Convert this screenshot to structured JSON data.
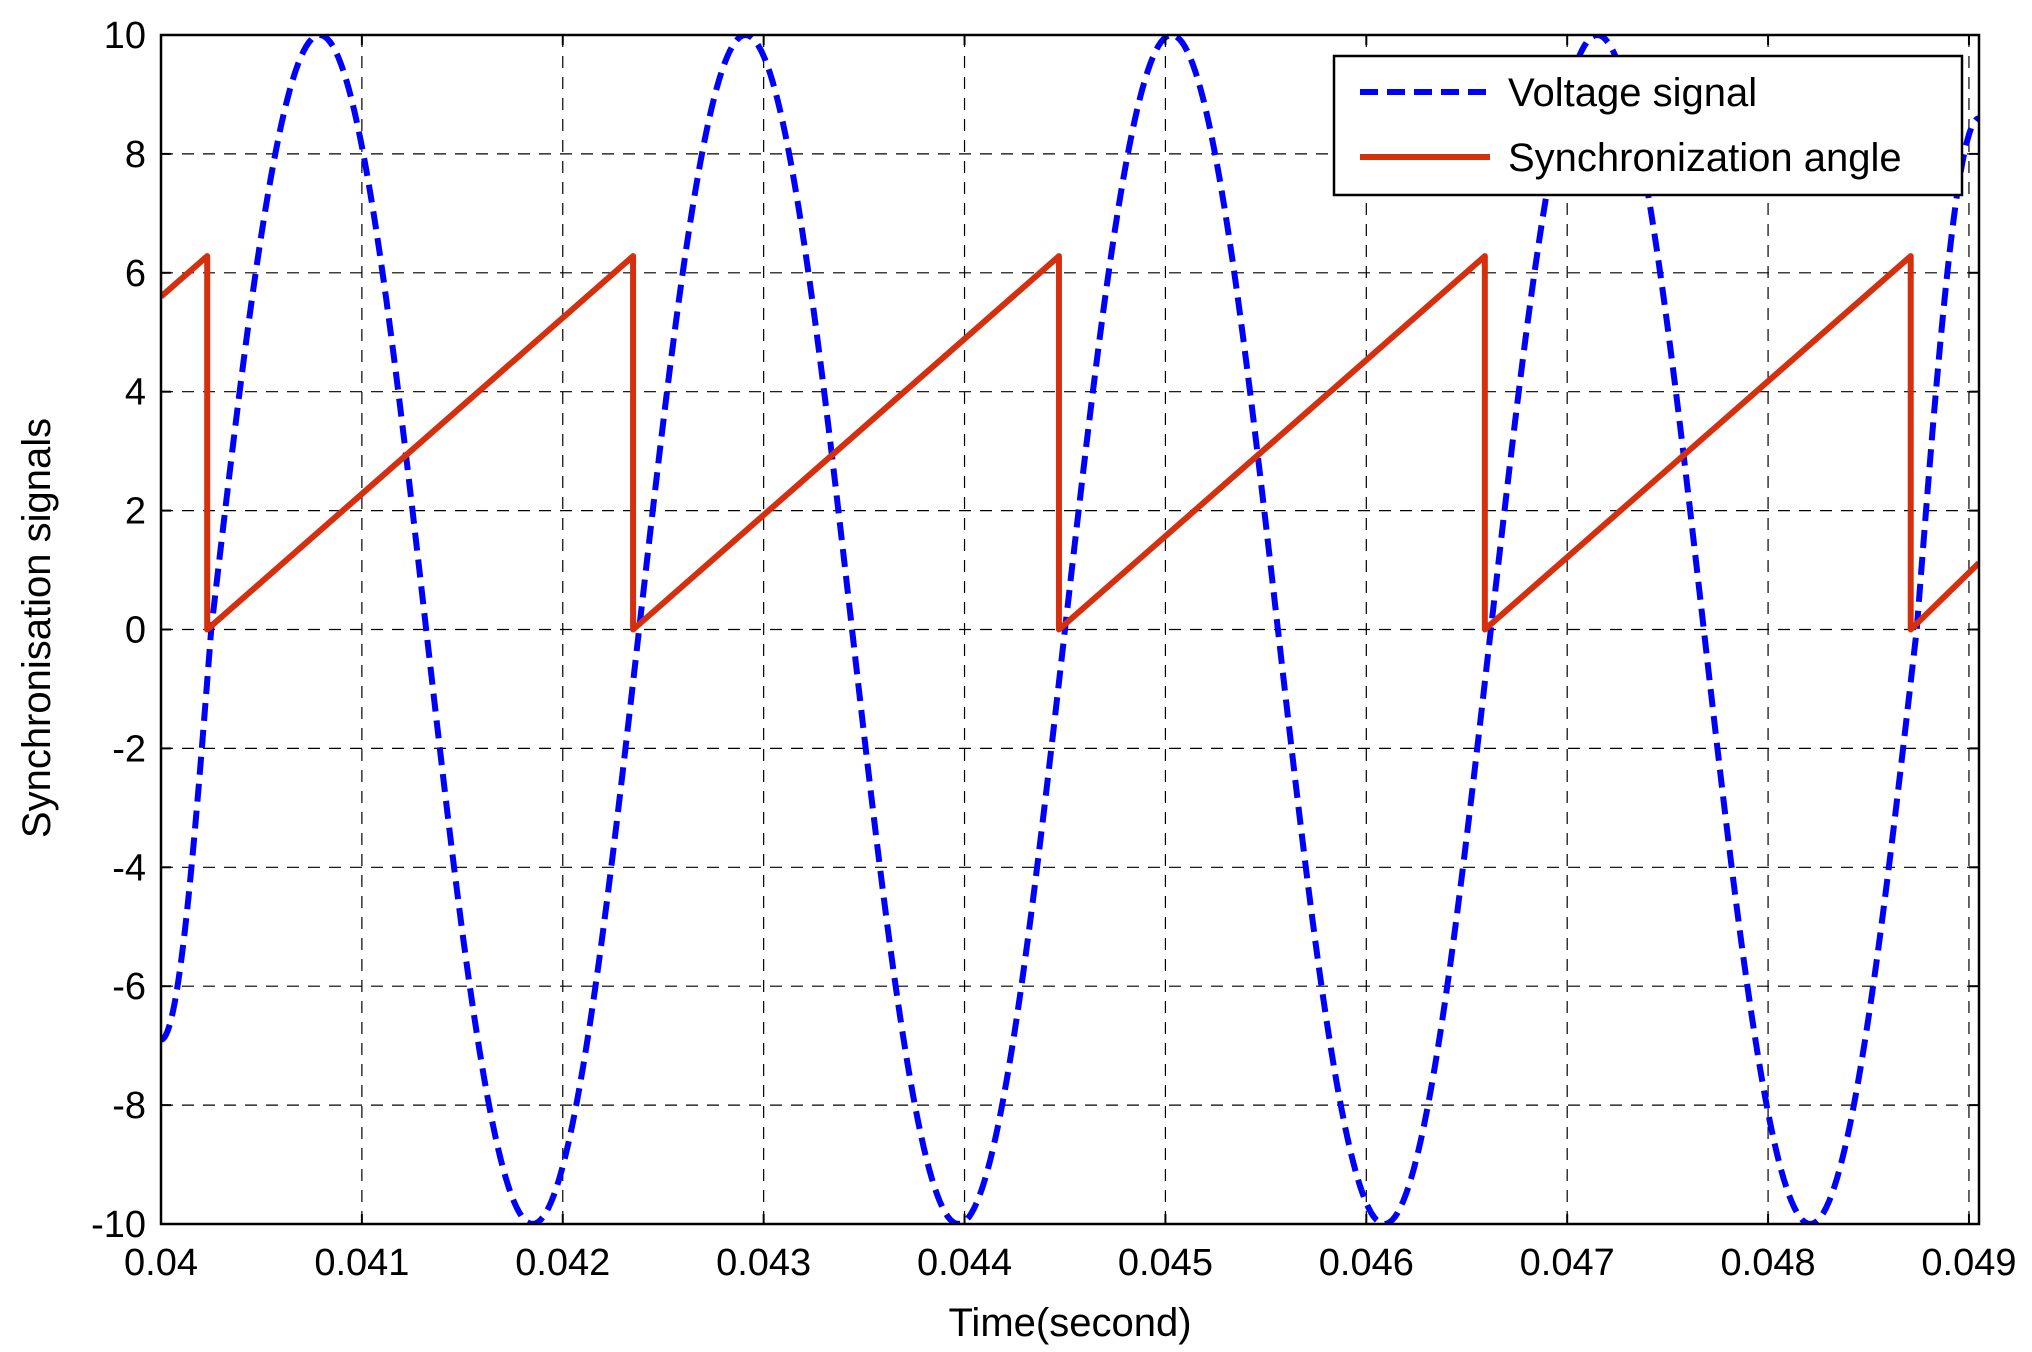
{
  "chart_data": {
    "type": "line",
    "title": "",
    "xlabel": "Time(second)",
    "ylabel": "Synchronisation signals",
    "xlim": [
      0.04,
      0.04905
    ],
    "ylim": [
      -10,
      10
    ],
    "x_ticks": [
      0.04,
      0.041,
      0.042,
      0.043,
      0.044,
      0.045,
      0.046,
      0.047,
      0.048,
      0.049
    ],
    "x_tick_labels": [
      "0.04",
      "0.041",
      "0.042",
      "0.043",
      "0.044",
      "0.045",
      "0.046",
      "0.047",
      "0.048",
      "0.049"
    ],
    "y_ticks": [
      -10,
      -8,
      -6,
      -4,
      -2,
      0,
      2,
      4,
      6,
      8,
      10
    ],
    "y_tick_labels": [
      "-10",
      "-8",
      "-6",
      "-4",
      "-2",
      "0",
      "2",
      "4",
      "6",
      "8",
      "10"
    ],
    "grid": true,
    "legend_position": "top-right",
    "series": [
      {
        "name": "Voltage signal",
        "color": "#0000ff",
        "style": "dashed",
        "x": [
          0.04,
          0.04025,
          0.04079,
          0.04132,
          0.04185,
          0.04238,
          0.04291,
          0.04344,
          0.04397,
          0.0445,
          0.04503,
          0.04556,
          0.04609,
          0.04662,
          0.04715,
          0.04768,
          0.04821,
          0.04874,
          0.04905
        ],
        "y": [
          -6.9,
          0,
          10,
          0,
          -10,
          0,
          10,
          0,
          -10,
          0,
          10,
          0,
          -10,
          0,
          10,
          0,
          -10,
          0,
          8.6
        ]
      },
      {
        "name": "Synchronization angle",
        "color": "#d62f0e",
        "style": "solid",
        "x": [
          0.04,
          0.04023,
          0.04023,
          0.04235,
          0.04235,
          0.04447,
          0.04447,
          0.04659,
          0.04659,
          0.04871,
          0.04871,
          0.04905
        ],
        "y": [
          5.6,
          6.28,
          0,
          6.28,
          0,
          6.28,
          0,
          6.28,
          0,
          6.28,
          0,
          1.12
        ]
      }
    ]
  }
}
